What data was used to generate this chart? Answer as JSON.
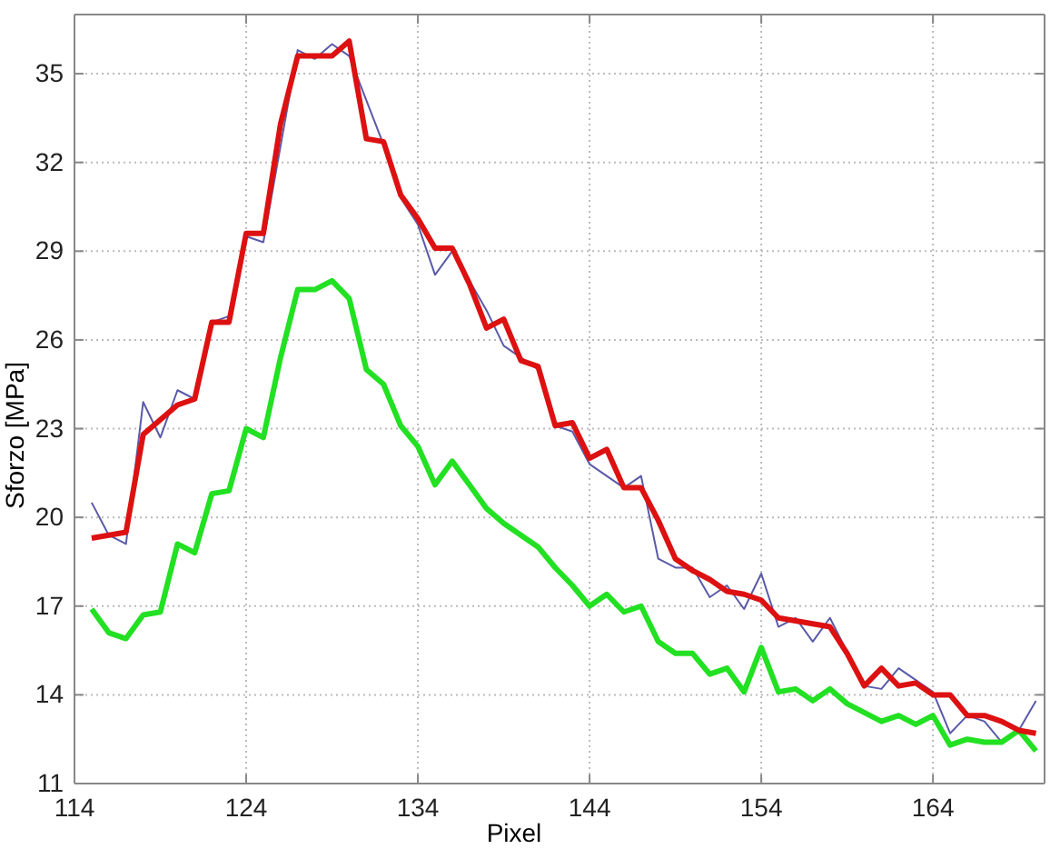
{
  "chart_data": {
    "type": "line",
    "xlabel": "Pixel",
    "ylabel": "Sforzo [MPa]",
    "xlim": [
      114,
      170.5
    ],
    "ylim": [
      11,
      37
    ],
    "xticks": [
      114,
      124,
      134,
      144,
      154,
      164
    ],
    "yticks": [
      11,
      14,
      17,
      20,
      23,
      26,
      29,
      32,
      35
    ],
    "grid": true,
    "line_style": "solid",
    "marker": "none",
    "x": [
      115,
      116,
      117,
      118,
      119,
      120,
      121,
      122,
      123,
      124,
      125,
      126,
      127,
      128,
      129,
      130,
      131,
      132,
      133,
      134,
      135,
      136,
      137,
      138,
      139,
      140,
      141,
      142,
      143,
      144,
      145,
      146,
      147,
      148,
      149,
      150,
      151,
      152,
      153,
      154,
      155,
      156,
      157,
      158,
      159,
      160,
      161,
      162,
      163,
      164,
      165,
      166,
      167,
      168,
      169,
      170
    ],
    "series": [
      {
        "color": "#5a5aa8",
        "values": [
          20.5,
          19.4,
          19.1,
          23.9,
          22.7,
          24.3,
          24.0,
          26.6,
          26.8,
          29.5,
          29.3,
          null,
          35.8,
          35.5,
          36.0,
          35.6,
          null,
          32.6,
          30.8,
          29.9,
          28.2,
          29.0,
          28.0,
          27.0,
          25.8,
          25.4,
          25.0,
          23.1,
          22.9,
          21.8,
          null,
          21.0,
          21.4,
          18.6,
          18.3,
          18.3,
          17.3,
          17.7,
          16.9,
          18.1,
          16.3,
          16.6,
          15.8,
          16.6,
          null,
          14.3,
          14.2,
          14.9,
          14.5,
          14.1,
          12.7,
          13.3,
          13.1,
          12.4,
          12.8,
          13.8
        ]
      },
      {
        "color": "#22e022",
        "values": [
          16.9,
          16.1,
          15.9,
          16.7,
          16.8,
          19.1,
          18.8,
          20.8,
          20.9,
          23.0,
          22.7,
          25.4,
          27.7,
          27.7,
          28.0,
          27.4,
          25.0,
          24.5,
          23.1,
          22.4,
          21.1,
          21.9,
          21.1,
          20.3,
          19.8,
          19.4,
          19.0,
          18.3,
          17.7,
          17.0,
          17.4,
          16.8,
          17.0,
          15.8,
          15.4,
          15.4,
          14.7,
          14.9,
          14.1,
          15.6,
          14.1,
          14.2,
          13.8,
          14.2,
          13.7,
          13.4,
          13.1,
          13.3,
          13.0,
          13.3,
          12.3,
          12.5,
          12.4,
          12.4,
          12.8,
          12.1
        ]
      },
      {
        "color": "#dd1111",
        "values": [
          19.3,
          19.4,
          19.5,
          22.8,
          23.3,
          23.8,
          24.0,
          26.6,
          26.6,
          29.6,
          29.6,
          33.3,
          35.6,
          35.6,
          35.6,
          36.1,
          32.8,
          32.7,
          30.9,
          30.1,
          29.1,
          29.1,
          27.9,
          26.4,
          26.7,
          25.3,
          25.1,
          23.1,
          23.2,
          22.0,
          22.3,
          21.0,
          21.0,
          19.9,
          18.6,
          18.2,
          17.9,
          17.5,
          17.4,
          17.2,
          16.6,
          16.5,
          16.4,
          16.3,
          15.4,
          14.3,
          14.9,
          14.3,
          14.4,
          14.0,
          14.0,
          13.3,
          13.3,
          13.1,
          12.8,
          12.7
        ]
      }
    ]
  }
}
